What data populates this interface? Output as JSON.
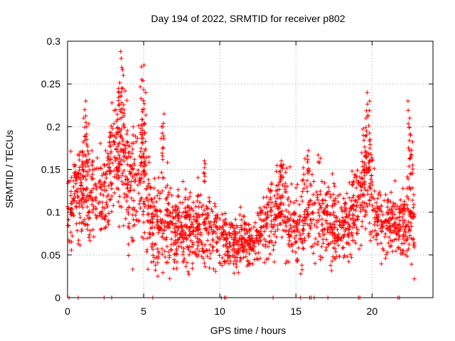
{
  "chart_data": {
    "type": "scatter",
    "title": "Day 194 of 2022, SRMTID for receiver p802",
    "xlabel": "GPS time / hours",
    "ylabel": "SRMTID / TECUs",
    "xlim": [
      0,
      24
    ],
    "ylim": [
      0,
      0.3
    ],
    "xticks": [
      0,
      5,
      10,
      15,
      20
    ],
    "xtick_labels": [
      "0",
      "5",
      "10",
      "15",
      "20"
    ],
    "yticks": [
      0,
      0.05,
      0.1,
      0.15,
      0.2,
      0.25,
      0.3
    ],
    "ytick_labels": [
      "0",
      "0.05",
      "0.1",
      "0.15",
      "0.2",
      "0.25",
      "0.3"
    ],
    "grid": true,
    "marker": "+",
    "color": "#ff0000",
    "series": [
      {
        "name": "SRMTID",
        "trend": [
          [
            0.0,
            0.11,
            0.025
          ],
          [
            0.5,
            0.12,
            0.025
          ],
          [
            1.0,
            0.125,
            0.03
          ],
          [
            1.5,
            0.12,
            0.03
          ],
          [
            2.0,
            0.125,
            0.025
          ],
          [
            2.5,
            0.13,
            0.025
          ],
          [
            3.0,
            0.16,
            0.035
          ],
          [
            3.5,
            0.17,
            0.04
          ],
          [
            4.0,
            0.13,
            0.035
          ],
          [
            4.5,
            0.12,
            0.035
          ],
          [
            5.0,
            0.15,
            0.04
          ],
          [
            5.5,
            0.09,
            0.025
          ],
          [
            6.0,
            0.085,
            0.025
          ],
          [
            7.0,
            0.085,
            0.025
          ],
          [
            8.0,
            0.08,
            0.02
          ],
          [
            9.0,
            0.085,
            0.025
          ],
          [
            10.0,
            0.075,
            0.02
          ],
          [
            10.5,
            0.06,
            0.015
          ],
          [
            11.0,
            0.06,
            0.015
          ],
          [
            11.5,
            0.065,
            0.015
          ],
          [
            12.0,
            0.065,
            0.015
          ],
          [
            12.5,
            0.075,
            0.015
          ],
          [
            13.0,
            0.09,
            0.02
          ],
          [
            13.5,
            0.1,
            0.025
          ],
          [
            14.0,
            0.11,
            0.025
          ],
          [
            14.5,
            0.09,
            0.025
          ],
          [
            15.0,
            0.08,
            0.02
          ],
          [
            15.5,
            0.09,
            0.025
          ],
          [
            16.0,
            0.1,
            0.025
          ],
          [
            17.0,
            0.09,
            0.025
          ],
          [
            18.0,
            0.08,
            0.02
          ],
          [
            18.5,
            0.09,
            0.025
          ],
          [
            19.0,
            0.11,
            0.025
          ],
          [
            19.5,
            0.13,
            0.03
          ],
          [
            20.0,
            0.12,
            0.025
          ],
          [
            20.5,
            0.09,
            0.02
          ],
          [
            21.0,
            0.085,
            0.02
          ],
          [
            21.5,
            0.09,
            0.02
          ],
          [
            22.0,
            0.085,
            0.02
          ],
          [
            22.5,
            0.09,
            0.025
          ],
          [
            22.8,
            0.085,
            0.025
          ]
        ],
        "spikes": [
          [
            1.2,
            0.23
          ],
          [
            1.1,
            0.21
          ],
          [
            1.3,
            0.2
          ],
          [
            3.5,
            0.288
          ],
          [
            3.6,
            0.28
          ],
          [
            3.7,
            0.26
          ],
          [
            3.4,
            0.24
          ],
          [
            3.3,
            0.225
          ],
          [
            4.8,
            0.27
          ],
          [
            5.0,
            0.272
          ],
          [
            5.1,
            0.24
          ],
          [
            4.9,
            0.22
          ],
          [
            6.3,
            0.215
          ],
          [
            6.2,
            0.2
          ],
          [
            19.7,
            0.24
          ],
          [
            19.8,
            0.23
          ],
          [
            19.6,
            0.21
          ],
          [
            19.5,
            0.19
          ],
          [
            22.4,
            0.23
          ],
          [
            22.5,
            0.21
          ],
          [
            22.6,
            0.19
          ],
          [
            1.0,
            0.17
          ],
          [
            2.8,
            0.19
          ],
          [
            4.3,
            0.2
          ],
          [
            14.0,
            0.16
          ],
          [
            15.8,
            0.172
          ],
          [
            9.0,
            0.16
          ],
          [
            19.9,
            0.185
          ]
        ],
        "zeros": [
          0.1,
          0.7,
          2.4,
          2.9,
          5.6,
          10.1,
          10.3,
          10.4,
          13.5,
          15.3,
          15.9,
          16.0,
          16.2,
          17.1,
          19.1,
          19.2,
          21.7,
          21.8
        ]
      }
    ]
  }
}
